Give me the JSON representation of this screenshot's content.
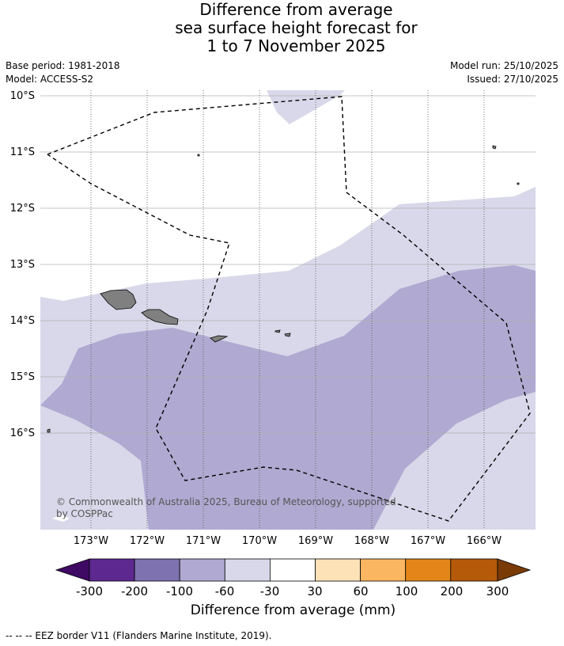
{
  "title": {
    "line1": "Difference from average",
    "line2": "sea surface height forecast for",
    "line3": "1 to 7 November 2025"
  },
  "meta": {
    "base_period": "Base period: 1981-2018",
    "model": "Model: ACCESS-S2",
    "model_run": "Model run: 25/10/2025",
    "issued": "Issued: 27/10/2025"
  },
  "map": {
    "lat_labels": [
      "10°S",
      "11°S",
      "12°S",
      "13°S",
      "14°S",
      "15°S",
      "16°S"
    ],
    "lon_labels": [
      "173°W",
      "172°W",
      "171°W",
      "170°W",
      "169°W",
      "168°W",
      "167°W",
      "166°W"
    ],
    "copyright_line1": "© Commonwealth of Australia 2025, Bureau of Meteorology, supported",
    "copyright_line2": "by COSPPac",
    "colors": {
      "land": "#808080",
      "band_light": "#d8d8ea",
      "band_mid": "#b0a9d1",
      "grid": "#b0b0b0",
      "eez": "#000000"
    }
  },
  "colorbar": {
    "labels": [
      "-300",
      "-200",
      "-100",
      "-60",
      "-30",
      "30",
      "60",
      "100",
      "200",
      "300"
    ],
    "colors": [
      "#3f0a63",
      "#5d2890",
      "#7f72b0",
      "#b0a9d1",
      "#d8d8ea",
      "#ffffff",
      "#fde2b8",
      "#fbb662",
      "#e48519",
      "#b45a09",
      "#7a3a06"
    ],
    "title": "Difference from average (mm)"
  },
  "footer": "--  --  -- EEZ border V11 (Flanders Marine Institute, 2019)."
}
